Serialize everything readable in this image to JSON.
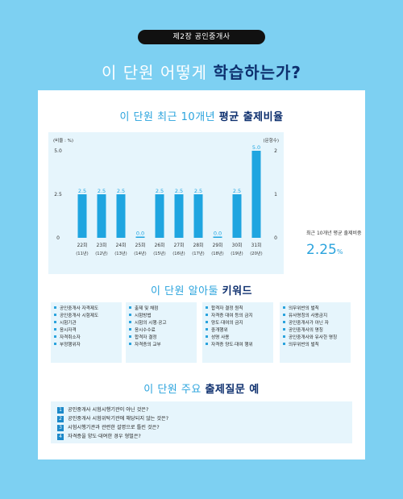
{
  "chapter_tag": "제2장   공인중개사",
  "headline": {
    "plain": "이 단원 어떻게 ",
    "bold": "학습하는가?"
  },
  "section1": {
    "plain": "이 단원 최근 10개년 ",
    "bold": "평균 출제비율"
  },
  "chart_data": {
    "type": "bar",
    "categories": [
      "22회",
      "23회",
      "24회",
      "25회",
      "26회",
      "27회",
      "28회",
      "29회",
      "30회",
      "31회"
    ],
    "category_sub": [
      "(11년)",
      "(12년)",
      "(13년)",
      "(14년)",
      "(15년)",
      "(16년)",
      "(17년)",
      "(18년)",
      "(19년)",
      "(20년)"
    ],
    "values": [
      2.5,
      2.5,
      2.5,
      0.0,
      2.5,
      2.5,
      2.5,
      0.0,
      2.5,
      5.0
    ],
    "value_labels": [
      "2.5",
      "2.5",
      "2.5",
      "0.0",
      "2.5",
      "2.5",
      "2.5",
      "0.0",
      "2.5",
      "5.0"
    ],
    "ylabel_left": "(비율 : %)",
    "ylabel_right": "(문항수)",
    "left_ticks": [
      "5.0",
      "2.5",
      "0"
    ],
    "right_ticks": [
      "2",
      "1",
      "0"
    ],
    "ylim": [
      0,
      5.0
    ],
    "y2lim": [
      0,
      2
    ],
    "bar_color": "#1fa5e0",
    "grid": false
  },
  "average": {
    "label": "최근 10개년 평균 출제비중",
    "value": "2.25",
    "unit": "%"
  },
  "section2": {
    "plain": "이 단원 알아둘 ",
    "bold": "키워드"
  },
  "keywords": [
    [
      "공인중개사 자격제도",
      "공인중개사 시험제도",
      "시험기관",
      "응시자격",
      "자격취소자",
      "부정행위자"
    ],
    [
      "출제 및 채점",
      "시험방법",
      "시험의 시행·공고",
      "응시수수료",
      "합격자 결정",
      "자격증의 교부"
    ],
    [
      "합격자 결정 원칙",
      "자격증 대여 등의 금지",
      "양도·대여의 금지",
      "중개행위",
      "성명 사용",
      "자격증 양도·대여 행위"
    ],
    [
      "의무위반의 벌칙",
      "유사명칭의 사용금지",
      "공인중개사가 아닌 자",
      "공인중개사의 명칭",
      "공인중개사와 유사한 명칭",
      "의무위반의 벌칙"
    ]
  ],
  "section3": {
    "plain": "이 단원 주요 ",
    "bold": "출제질문 예"
  },
  "questions": [
    {
      "num": "1",
      "text": "공인중개사 시험시행기관이 아닌 것은?"
    },
    {
      "num": "2",
      "text": "공인중개사 시험위탁기관에 해당되지 않는 것은?"
    },
    {
      "num": "3",
      "text": "시험시행기관과 관련한 설명으로 틀린 것은?"
    },
    {
      "num": "4",
      "text": "자격증을 양도·대여한 경우 형벌은?"
    }
  ]
}
